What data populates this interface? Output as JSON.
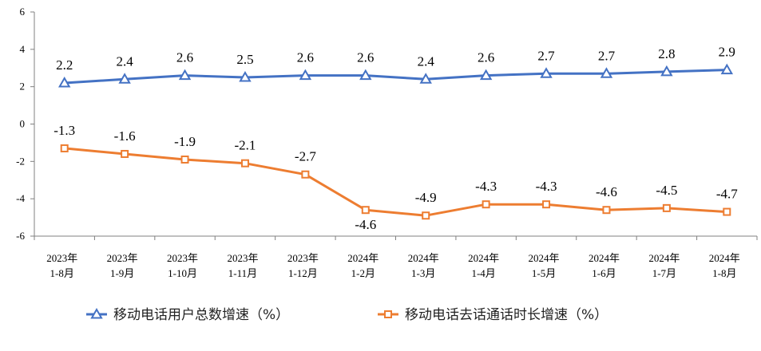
{
  "chart_data": {
    "type": "line",
    "categories": [
      [
        "2023年",
        "1-8月"
      ],
      [
        "2023年",
        "1-9月"
      ],
      [
        "2023年",
        "1-10月"
      ],
      [
        "2023年",
        "1-11月"
      ],
      [
        "2023年",
        "1-12月"
      ],
      [
        "2024年",
        "1-2月"
      ],
      [
        "2024年",
        "1-3月"
      ],
      [
        "2024年",
        "1-4月"
      ],
      [
        "2024年",
        "1-5月"
      ],
      [
        "2024年",
        "1-6月"
      ],
      [
        "2024年",
        "1-7月"
      ],
      [
        "2024年",
        "1-8月"
      ]
    ],
    "series": [
      {
        "name": "移动电话用户总数增速（%）",
        "color": "#4472C4",
        "marker": "triangle",
        "values": [
          2.2,
          2.4,
          2.6,
          2.5,
          2.6,
          2.6,
          2.4,
          2.6,
          2.7,
          2.7,
          2.8,
          2.9
        ],
        "labels": [
          "2.2",
          "2.4",
          "2.6",
          "2.5",
          "2.6",
          "2.6",
          "2.4",
          "2.6",
          "2.7",
          "2.7",
          "2.8",
          "2.9"
        ]
      },
      {
        "name": "移动电话去话通话时长增速（%）",
        "color": "#ED7D31",
        "marker": "square",
        "values": [
          -1.3,
          -1.6,
          -1.9,
          -2.1,
          -2.7,
          -4.6,
          -4.9,
          -4.3,
          -4.3,
          -4.6,
          -4.5,
          -4.7
        ],
        "labels": [
          "-1.3",
          "-1.6",
          "-1.9",
          "-2.1",
          "-2.7",
          "-4.6",
          "-4.9",
          "-4.3",
          "-4.3",
          "-4.6",
          "-4.5",
          "-4.7"
        ]
      }
    ],
    "ylim": [
      -6,
      6
    ],
    "yticks": [
      6,
      4,
      2,
      0,
      -2,
      -4,
      -6
    ],
    "legend": "bottom",
    "grid": false
  }
}
